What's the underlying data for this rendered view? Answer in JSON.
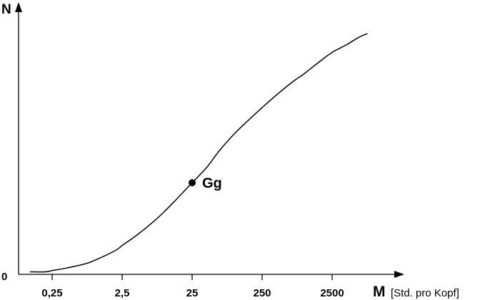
{
  "chart_data": {
    "type": "line",
    "x_scale": "log",
    "x_tick_labels": [
      "0,25",
      "2,5",
      "25",
      "250",
      "2500"
    ],
    "x_ticks": [
      0.25,
      2.5,
      25,
      250,
      2500
    ],
    "y_tick_labels": [
      "0"
    ],
    "xlabel": "M",
    "xunit": "[Std. pro Kopf]",
    "ylabel": "N",
    "xlim": [
      0.12,
      30000
    ],
    "ylim": [
      0,
      1.0
    ],
    "grid": false,
    "series": [
      {
        "x": [
          0.12,
          0.2,
          0.25,
          0.4,
          0.7,
          1.0,
          2.0,
          2.5,
          4.0,
          7.0,
          10.0,
          15.0,
          25.0,
          40.0,
          60.0,
          100.0,
          160.0,
          250.0,
          400.0,
          700.0,
          1000.0,
          1600.0,
          2500.0,
          4000.0,
          6000.0,
          8000.0
        ],
        "y": [
          0.01,
          0.01,
          0.015,
          0.025,
          0.04,
          0.055,
          0.095,
          0.115,
          0.155,
          0.21,
          0.25,
          0.3,
          0.365,
          0.425,
          0.49,
          0.56,
          0.615,
          0.665,
          0.715,
          0.77,
          0.8,
          0.845,
          0.885,
          0.915,
          0.945,
          0.96
        ]
      }
    ],
    "annotations": [
      {
        "label": "Gg",
        "x": 25,
        "y": 0.365
      }
    ]
  }
}
